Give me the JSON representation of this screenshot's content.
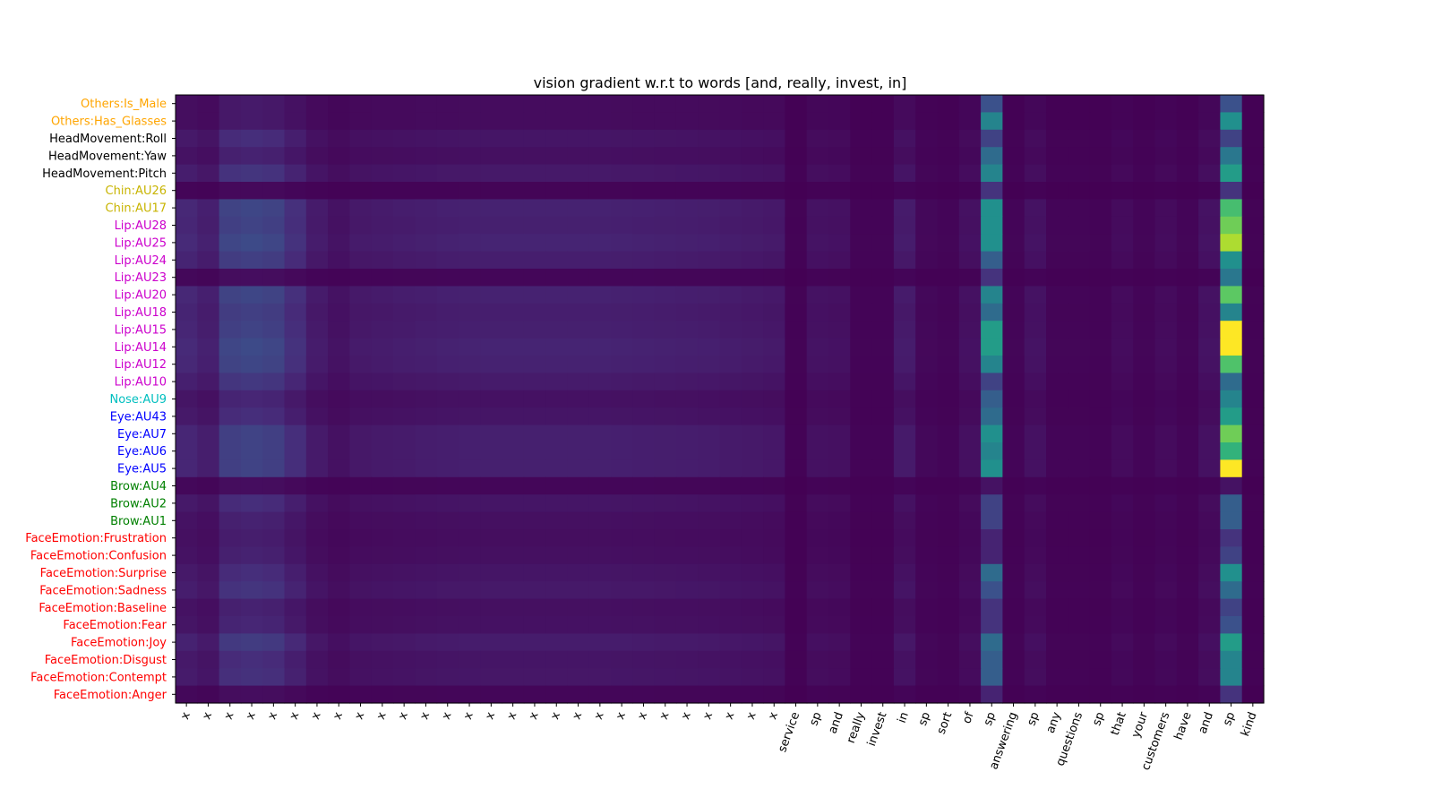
{
  "chart_data": {
    "type": "heatmap",
    "title": "vision gradient w.r.t to words [and, really, invest, in]",
    "colormap": "viridis",
    "value_range": [
      0,
      1
    ],
    "x_labels": [
      "x",
      "x",
      "x",
      "x",
      "x",
      "x",
      "x",
      "x",
      "x",
      "x",
      "x",
      "x",
      "x",
      "x",
      "x",
      "x",
      "x",
      "x",
      "x",
      "x",
      "x",
      "x",
      "x",
      "x",
      "x",
      "x",
      "x",
      "x",
      "service",
      "sp",
      "and",
      "really",
      "invest",
      "in",
      "sp",
      "sort",
      "of",
      "sp",
      "answering",
      "sp",
      "any",
      "questions",
      "sp",
      "that",
      "your",
      "customers",
      "have",
      "and",
      "sp",
      "kind"
    ],
    "y_labels": [
      {
        "text": "Others:Is_Male",
        "color": "#ffa500"
      },
      {
        "text": "Others:Has_Glasses",
        "color": "#ffa500"
      },
      {
        "text": "HeadMovement:Roll",
        "color": "#000000"
      },
      {
        "text": "HeadMovement:Yaw",
        "color": "#000000"
      },
      {
        "text": "HeadMovement:Pitch",
        "color": "#000000"
      },
      {
        "text": "Chin:AU26",
        "color": "#c8b400"
      },
      {
        "text": "Chin:AU17",
        "color": "#c8b400"
      },
      {
        "text": "Lip:AU28",
        "color": "#cc00cc"
      },
      {
        "text": "Lip:AU25",
        "color": "#cc00cc"
      },
      {
        "text": "Lip:AU24",
        "color": "#cc00cc"
      },
      {
        "text": "Lip:AU23",
        "color": "#cc00cc"
      },
      {
        "text": "Lip:AU20",
        "color": "#cc00cc"
      },
      {
        "text": "Lip:AU18",
        "color": "#cc00cc"
      },
      {
        "text": "Lip:AU15",
        "color": "#cc00cc"
      },
      {
        "text": "Lip:AU14",
        "color": "#cc00cc"
      },
      {
        "text": "Lip:AU12",
        "color": "#cc00cc"
      },
      {
        "text": "Lip:AU10",
        "color": "#cc00cc"
      },
      {
        "text": "Nose:AU9",
        "color": "#00bfbf"
      },
      {
        "text": "Eye:AU43",
        "color": "#0000ff"
      },
      {
        "text": "Eye:AU7",
        "color": "#0000ff"
      },
      {
        "text": "Eye:AU6",
        "color": "#0000ff"
      },
      {
        "text": "Eye:AU5",
        "color": "#0000ff"
      },
      {
        "text": "Brow:AU4",
        "color": "#008000"
      },
      {
        "text": "Brow:AU2",
        "color": "#008000"
      },
      {
        "text": "Brow:AU1",
        "color": "#008000"
      },
      {
        "text": "FaceEmotion:Frustration",
        "color": "#ff0000"
      },
      {
        "text": "FaceEmotion:Confusion",
        "color": "#ff0000"
      },
      {
        "text": "FaceEmotion:Surprise",
        "color": "#ff0000"
      },
      {
        "text": "FaceEmotion:Sadness",
        "color": "#ff0000"
      },
      {
        "text": "FaceEmotion:Baseline",
        "color": "#ff0000"
      },
      {
        "text": "FaceEmotion:Fear",
        "color": "#ff0000"
      },
      {
        "text": "FaceEmotion:Joy",
        "color": "#ff0000"
      },
      {
        "text": "FaceEmotion:Disgust",
        "color": "#ff0000"
      },
      {
        "text": "FaceEmotion:Contempt",
        "color": "#ff0000"
      },
      {
        "text": "FaceEmotion:Anger",
        "color": "#ff0000"
      }
    ],
    "row_strength": [
      0.3,
      0.3,
      0.55,
      0.4,
      0.65,
      0.1,
      0.9,
      0.85,
      0.95,
      0.8,
      0.15,
      0.9,
      0.8,
      0.85,
      0.95,
      0.9,
      0.7,
      0.45,
      0.55,
      0.85,
      0.85,
      0.85,
      0.15,
      0.55,
      0.4,
      0.35,
      0.4,
      0.55,
      0.65,
      0.4,
      0.45,
      0.75,
      0.55,
      0.6,
      0.15
    ],
    "col_weight": [
      0.45,
      0.35,
      0.8,
      0.85,
      0.8,
      0.55,
      0.3,
      0.2,
      0.28,
      0.3,
      0.32,
      0.34,
      0.36,
      0.37,
      0.38,
      0.38,
      0.38,
      0.38,
      0.38,
      0.38,
      0.37,
      0.36,
      0.35,
      0.34,
      0.33,
      0.31,
      0.29,
      0.27,
      0.03,
      0.2,
      0.18,
      0.04,
      0.04,
      0.3,
      0.08,
      0.05,
      0.18,
      0.85,
      0.05,
      0.2,
      0.05,
      0.05,
      0.04,
      0.12,
      0.05,
      0.12,
      0.05,
      0.2,
      1.0,
      0.03
    ],
    "sp_column_values": [
      0.25,
      0.45,
      0.2,
      0.35,
      0.45,
      0.15,
      0.5,
      0.5,
      0.5,
      0.3,
      0.15,
      0.45,
      0.35,
      0.55,
      0.55,
      0.45,
      0.2,
      0.3,
      0.35,
      0.5,
      0.45,
      0.5,
      0.05,
      0.2,
      0.2,
      0.1,
      0.1,
      0.35,
      0.25,
      0.15,
      0.15,
      0.35,
      0.3,
      0.3,
      0.1
    ],
    "last_sp_column_values": [
      0.25,
      0.5,
      0.2,
      0.4,
      0.55,
      0.15,
      0.7,
      0.78,
      0.88,
      0.5,
      0.4,
      0.75,
      0.45,
      1.0,
      1.0,
      0.72,
      0.35,
      0.45,
      0.55,
      0.78,
      0.65,
      1.0,
      0.05,
      0.3,
      0.3,
      0.15,
      0.2,
      0.5,
      0.35,
      0.2,
      0.25,
      0.55,
      0.45,
      0.45,
      0.15
    ]
  }
}
